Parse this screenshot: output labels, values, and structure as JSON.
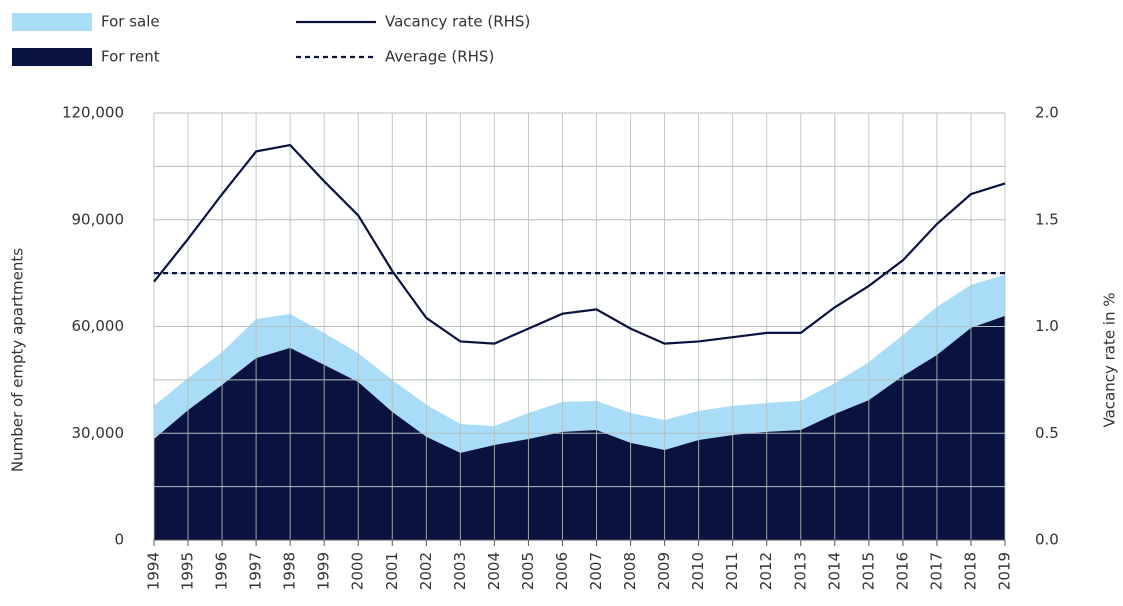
{
  "chart_data": {
    "type": "area",
    "categories": [
      "1994",
      "1995",
      "1996",
      "1997",
      "1998",
      "1999",
      "2000",
      "2001",
      "2002",
      "2003",
      "2004",
      "2005",
      "2006",
      "2007",
      "2008",
      "2009",
      "2010",
      "2011",
      "2012",
      "2013",
      "2014",
      "2015",
      "2016",
      "2017",
      "2018",
      "2019"
    ],
    "series": [
      {
        "name": "For rent",
        "type": "area",
        "color": "#0a1240",
        "values": [
          28400,
          36500,
          43600,
          51100,
          54000,
          49200,
          44400,
          36000,
          29000,
          24500,
          26700,
          28400,
          30400,
          30900,
          27300,
          25300,
          28100,
          29500,
          30400,
          30900,
          35400,
          39300,
          46100,
          52000,
          59600,
          63000
        ]
      },
      {
        "name": "For sale",
        "type": "area",
        "color": "#a8dcf7",
        "values": [
          9300,
          9000,
          9200,
          11000,
          9500,
          9000,
          8100,
          9000,
          9000,
          8100,
          5300,
          7300,
          8400,
          8200,
          8400,
          8400,
          8200,
          8200,
          8100,
          8200,
          8700,
          10700,
          11500,
          13500,
          12100,
          11500
        ]
      },
      {
        "name": "Vacancy rate (RHS)",
        "type": "line",
        "axis": "y2",
        "color": "#0a1240",
        "values": [
          1.21,
          1.41,
          1.62,
          1.82,
          1.85,
          1.68,
          1.52,
          1.26,
          1.04,
          0.93,
          0.92,
          0.99,
          1.06,
          1.08,
          0.99,
          0.92,
          0.93,
          0.95,
          0.97,
          0.97,
          1.09,
          1.19,
          1.31,
          1.48,
          1.62,
          1.67
        ]
      },
      {
        "name": "Average (RHS)",
        "type": "hline",
        "axis": "y2",
        "color": "#0a1240",
        "dashed": true,
        "value": 1.25
      }
    ],
    "y_label": "Number of empty apartments",
    "y2_label": "Vacancy rate in %",
    "ylim": [
      0,
      120000
    ],
    "yticks": [
      {
        "value": 0,
        "label": "0"
      },
      {
        "value": 30000,
        "label": "30,000"
      },
      {
        "value": 60000,
        "label": "60,000"
      },
      {
        "value": 90000,
        "label": "90,000"
      },
      {
        "value": 120000,
        "label": "120,000"
      }
    ],
    "y2lim": [
      0,
      2
    ],
    "y2ticks": [
      {
        "value": 0,
        "label": "0.0"
      },
      {
        "value": 0.5,
        "label": "0.5"
      },
      {
        "value": 1,
        "label": "1.0"
      },
      {
        "value": 1.5,
        "label": "1.5"
      },
      {
        "value": 2,
        "label": "2.0"
      }
    ],
    "grid": true,
    "stacked": true,
    "legend": "top-left"
  }
}
